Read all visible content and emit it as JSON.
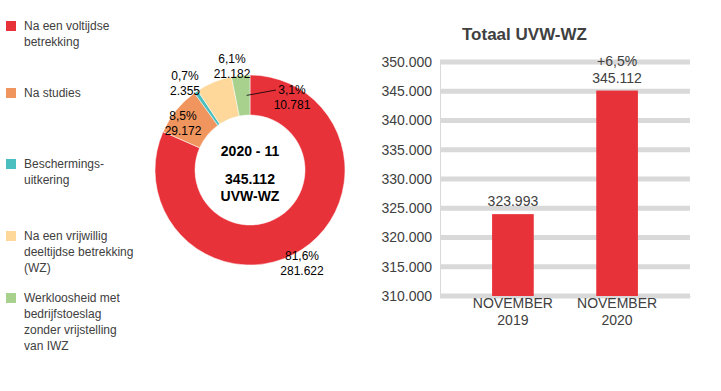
{
  "chart_data": [
    {
      "type": "donut",
      "categories": [
        "Na een voltijdse\nbetrekking",
        "Na studies",
        "Beschermings-\nuitkering",
        "Na een vrijwillig\ndeeltijdse betrekking\n(WZ)",
        "Werkloosheid met\nbedrijfstoeslag\nzonder vrijstelling\nvan IWZ"
      ],
      "values": [
        281622,
        29172,
        2355,
        21182,
        10781
      ],
      "value_labels": [
        "281.622",
        "29.172",
        "2.355",
        "21.182",
        "10.781"
      ],
      "shares": [
        81.6,
        8.5,
        0.7,
        6.1,
        3.1
      ],
      "share_labels": [
        "81,6%",
        "8,5%",
        "0,7%",
        "6,1%",
        "3,1%"
      ],
      "colors": [
        "#e8323a",
        "#f1955f",
        "#4bbfc0",
        "#fdd89a",
        "#a9d18e"
      ],
      "data_labels": true,
      "legend": "left",
      "center_title": "2020 - 11",
      "total": 345112,
      "total_label": "345.112",
      "total_unit": "UVW-WZ"
    },
    {
      "type": "bar",
      "title": "Totaal UVW-WZ",
      "categories": [
        "NOVEMBER\n2019",
        "NOVEMBER\n2020"
      ],
      "values": [
        323993,
        345112
      ],
      "value_labels": [
        "323.993",
        "345.112"
      ],
      "color": "#e8323a",
      "ylim": [
        310000,
        350000
      ],
      "yticks": [
        {
          "value": 310000,
          "label": "310.000"
        },
        {
          "value": 315000,
          "label": "315.000"
        },
        {
          "value": 320000,
          "label": "320.000"
        },
        {
          "value": 325000,
          "label": "325.000"
        },
        {
          "value": 330000,
          "label": "330.000"
        },
        {
          "value": 335000,
          "label": "335.000"
        },
        {
          "value": 340000,
          "label": "340.000"
        },
        {
          "value": 345000,
          "label": "345.000"
        },
        {
          "value": 350000,
          "label": "350.000"
        }
      ],
      "grid": true,
      "data_labels": true,
      "change": 6.5,
      "change_label": "+6,5%"
    }
  ]
}
